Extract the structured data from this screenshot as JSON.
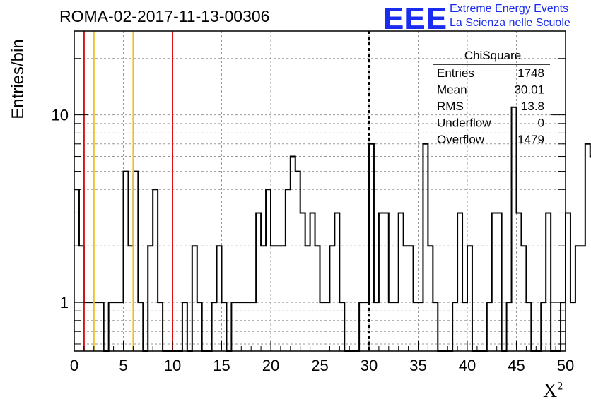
{
  "header": {
    "title": "ROMA-02-2017-11-13-00306",
    "logo_text": "EEE",
    "subtitle_line1": "Extreme Energy Events",
    "subtitle_line2": "La Scienza nelle Scuole"
  },
  "colors": {
    "brand": "#1a2cf0",
    "red_lines": "#dd1111",
    "yellow_lines": "#f0c020"
  },
  "stats": {
    "title": "ChiSquare",
    "rows": [
      {
        "label": "Entries",
        "value": "1748"
      },
      {
        "label": "Mean",
        "value": "30.01"
      },
      {
        "label": "RMS",
        "value": "13.8"
      },
      {
        "label": "Underflow",
        "value": "0"
      },
      {
        "label": "Overflow",
        "value": "1479"
      }
    ]
  },
  "chart_data": {
    "type": "histogram",
    "title": "ROMA-02-2017-11-13-00306",
    "xlabel": "X²",
    "xlabel_base": "X",
    "xlabel_sup": "2",
    "ylabel": "Entries/bin",
    "xlim": [
      0,
      50
    ],
    "ylim": [
      0.55,
      28
    ],
    "yscale": "log",
    "grid": true,
    "bin_width": 0.5,
    "x_ticks": [
      0,
      5,
      10,
      15,
      20,
      25,
      30,
      35,
      40,
      45,
      50
    ],
    "y_ticks": [
      1,
      10
    ],
    "values": [
      4,
      2,
      1,
      1,
      1,
      1,
      0,
      1,
      1,
      1,
      5,
      2,
      5,
      1,
      0,
      2,
      4,
      1,
      0,
      0,
      0,
      0,
      1,
      0,
      2,
      1,
      0,
      0,
      1,
      2,
      1,
      0,
      1,
      1,
      1,
      1,
      1,
      3,
      2,
      4,
      2,
      2,
      2,
      4,
      6,
      5,
      3,
      2,
      3,
      2,
      1,
      1,
      2,
      3,
      1,
      0,
      0,
      0,
      1,
      1,
      7,
      1,
      3,
      3,
      1,
      1,
      3,
      2,
      2,
      1,
      1,
      7,
      2,
      1,
      0,
      0,
      0,
      1,
      3,
      1,
      2,
      0,
      0,
      0,
      1,
      3,
      3,
      0,
      1,
      11,
      3,
      2,
      1,
      0,
      0,
      1,
      3,
      0,
      0,
      1,
      3,
      1,
      2,
      2,
      7,
      6,
      1,
      3,
      2,
      5,
      1,
      1,
      7,
      1,
      6,
      2,
      3,
      0,
      2,
      4,
      2,
      10,
      1,
      13,
      4,
      6,
      2,
      5,
      1,
      15,
      1,
      5,
      1,
      4,
      3,
      6,
      1,
      1,
      1,
      1,
      7,
      0,
      0
    ],
    "vlines": [
      {
        "x": 1,
        "color": "red",
        "style": "solid"
      },
      {
        "x": 10,
        "color": "red",
        "style": "solid"
      },
      {
        "x": 2,
        "color": "yellow",
        "style": "solid"
      },
      {
        "x": 6,
        "color": "yellow",
        "style": "solid"
      },
      {
        "x": 30,
        "color": "black",
        "style": "dashed"
      }
    ]
  }
}
